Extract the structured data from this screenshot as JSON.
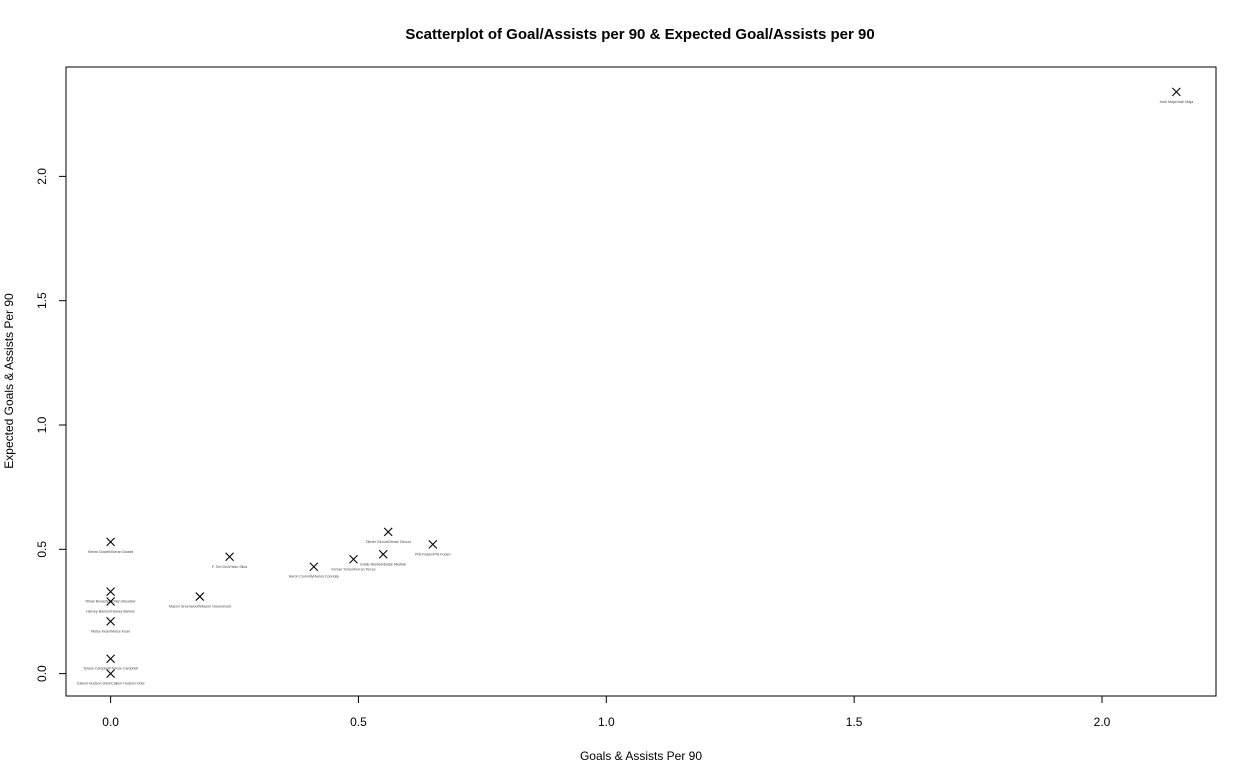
{
  "chart_data": {
    "type": "scatter",
    "title": "Scatterplot of Goal/Assists per 90 & Expected Goal/Assists per 90",
    "xlabel": "Goals & Assists Per 90",
    "ylabel": "Expected Goals & Assists Per 90",
    "xlim": [
      -0.09,
      2.23
    ],
    "ylim": [
      -0.09,
      2.44
    ],
    "xticks": [
      {
        "value": 0.0,
        "label": "0.0"
      },
      {
        "value": 0.5,
        "label": "0.5"
      },
      {
        "value": 1.0,
        "label": "1.0"
      },
      {
        "value": 1.5,
        "label": "1.5"
      },
      {
        "value": 2.0,
        "label": "2.0"
      }
    ],
    "yticks": [
      {
        "value": 0.0,
        "label": "0.0"
      },
      {
        "value": 0.5,
        "label": "0.5"
      },
      {
        "value": 1.0,
        "label": "1.0"
      },
      {
        "value": 1.5,
        "label": "1.5"
      },
      {
        "value": 2.0,
        "label": "2.0"
      }
    ],
    "grid": false,
    "marker": "x",
    "points": [
      {
        "x": 2.15,
        "y": 2.34,
        "label": "Josh Maja\\Josh Maja"
      },
      {
        "x": 0.0,
        "y": 0.53,
        "label": "Kieran Dowell\\Kieran Dowell"
      },
      {
        "x": 0.24,
        "y": 0.47,
        "label": "F. Ten Dru\\Fabio Silva"
      },
      {
        "x": 0.56,
        "y": 0.57,
        "label": "Olivier Giroud\\Olivier Giroud"
      },
      {
        "x": 0.65,
        "y": 0.52,
        "label": "Phil Foden\\Phil Foden"
      },
      {
        "x": 0.55,
        "y": 0.48,
        "label": "Eddie Nketiah\\Eddie Nketiah"
      },
      {
        "x": 0.49,
        "y": 0.46,
        "label": "Ferran Torres\\Ferran Torres"
      },
      {
        "x": 0.41,
        "y": 0.43,
        "label": "Aaron Connolly\\Aaron Connolly"
      },
      {
        "x": 0.18,
        "y": 0.31,
        "label": "Mason Greenwood\\Mason Greenwood"
      },
      {
        "x": 0.0,
        "y": 0.33,
        "label": "Rhian Brewster\\Rhian Brewster"
      },
      {
        "x": 0.0,
        "y": 0.29,
        "label": "Harvey Barnes\\Harvey Barnes"
      },
      {
        "x": 0.0,
        "y": 0.21,
        "label": "Moise Kean\\Moise Kean"
      },
      {
        "x": 0.0,
        "y": 0.06,
        "label": "Tyrese Campbell\\Tyrese Campbell"
      },
      {
        "x": 0.0,
        "y": 0.0,
        "label": "Callum Hudson-Odoi\\Callum Hudson-Odoi"
      }
    ]
  }
}
